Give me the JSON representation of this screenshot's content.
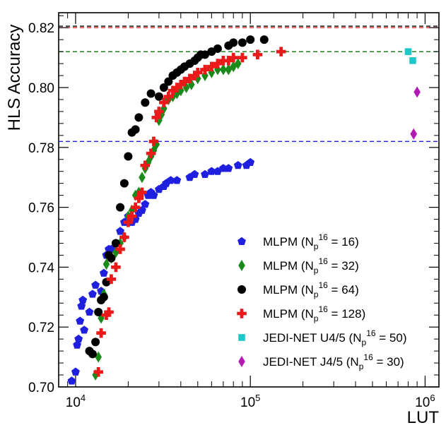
{
  "chart_data": {
    "type": "scatter",
    "x_scale": "log",
    "xlim": [
      8000,
      1200000
    ],
    "ylim": [
      0.7,
      0.825
    ],
    "xlabel": "LUT",
    "ylabel": "HLS Accuracy",
    "x_ticks": [
      {
        "value": 10000,
        "base": "10",
        "exp": "4"
      },
      {
        "value": 100000,
        "base": "10",
        "exp": "5"
      },
      {
        "value": 1000000,
        "base": "10",
        "exp": "6"
      }
    ],
    "y_ticks": [
      "0.70",
      "0.72",
      "0.74",
      "0.76",
      "0.78",
      "0.80",
      "0.82"
    ],
    "legend_position": "bottom-right",
    "reference_lines": [
      {
        "y": 0.8205,
        "color": "#000000"
      },
      {
        "y": 0.82,
        "color": "#e02020"
      },
      {
        "y": 0.812,
        "color": "#208020"
      },
      {
        "y": 0.782,
        "color": "#2020e0"
      }
    ],
    "series": [
      {
        "name": "MLPM",
        "np": "16",
        "marker": "pentagon",
        "color": "#1f1fe0",
        "x": [
          9500,
          10000,
          10200,
          10400,
          10600,
          10800,
          11000,
          11200,
          12000,
          12500,
          13000,
          14000,
          14500,
          15000,
          15500,
          16000,
          17000,
          18000,
          19000,
          20000,
          21000,
          22000,
          23000,
          24000,
          25000,
          26000,
          27000,
          28000,
          30000,
          32000,
          33000,
          35000,
          38000,
          45000,
          48000,
          55000,
          60000,
          65000,
          70000,
          75000,
          85000,
          95000,
          100000
        ],
        "y": [
          0.702,
          0.705,
          0.714,
          0.716,
          0.722,
          0.727,
          0.729,
          0.719,
          0.725,
          0.731,
          0.734,
          0.732,
          0.738,
          0.744,
          0.746,
          0.746,
          0.748,
          0.752,
          0.755,
          0.757,
          0.755,
          0.756,
          0.758,
          0.759,
          0.761,
          0.764,
          0.765,
          0.764,
          0.766,
          0.767,
          0.768,
          0.769,
          0.769,
          0.77,
          0.771,
          0.771,
          0.772,
          0.772,
          0.773,
          0.773,
          0.774,
          0.774,
          0.775
        ]
      },
      {
        "name": "MLPM",
        "np": "32",
        "marker": "diamond",
        "color": "#1a8a1a",
        "x": [
          13000,
          13500,
          14000,
          14500,
          15000,
          16000,
          17000,
          18000,
          19000,
          20000,
          21000,
          22000,
          23000,
          24000,
          25000,
          26000,
          27000,
          28000,
          29000,
          30000,
          31000,
          32000,
          34000,
          36000,
          38000,
          40000,
          43000,
          46000,
          50000,
          55000,
          60000,
          65000,
          70000,
          75000,
          80000,
          85000
        ],
        "y": [
          0.704,
          0.71,
          0.723,
          0.731,
          0.741,
          0.743,
          0.745,
          0.748,
          0.75,
          0.757,
          0.759,
          0.764,
          0.765,
          0.77,
          0.773,
          0.775,
          0.777,
          0.779,
          0.781,
          0.789,
          0.791,
          0.793,
          0.796,
          0.797,
          0.798,
          0.799,
          0.8,
          0.801,
          0.803,
          0.804,
          0.805,
          0.806,
          0.806,
          0.806,
          0.807,
          0.808
        ]
      },
      {
        "name": "MLPM",
        "np": "64",
        "marker": "circle",
        "color": "#000000",
        "x": [
          12000,
          12500,
          13000,
          13500,
          14000,
          14500,
          15000,
          15500,
          16000,
          17000,
          18000,
          19000,
          20000,
          21000,
          22000,
          23000,
          25000,
          27000,
          30000,
          32000,
          34000,
          36000,
          38000,
          40000,
          42000,
          45000,
          48000,
          50000,
          52000,
          55000,
          60000,
          65000,
          75000,
          80000,
          90000,
          100000,
          120000
        ],
        "y": [
          0.712,
          0.711,
          0.715,
          0.725,
          0.729,
          0.73,
          0.735,
          0.744,
          0.743,
          0.748,
          0.76,
          0.768,
          0.777,
          0.785,
          0.786,
          0.79,
          0.795,
          0.798,
          0.797,
          0.8,
          0.802,
          0.804,
          0.805,
          0.806,
          0.807,
          0.808,
          0.809,
          0.81,
          0.811,
          0.811,
          0.812,
          0.813,
          0.814,
          0.815,
          0.815,
          0.816,
          0.816
        ]
      },
      {
        "name": "MLPM",
        "np": "128",
        "marker": "cross",
        "color": "#e81a1a",
        "x": [
          13500,
          14000,
          15000,
          15500,
          16000,
          17000,
          18000,
          19000,
          20000,
          21000,
          22000,
          23000,
          24000,
          25000,
          27000,
          28000,
          29000,
          30000,
          32000,
          34000,
          36000,
          38000,
          40000,
          42000,
          45000,
          48000,
          50000,
          55000,
          60000,
          65000,
          70000,
          75000,
          80000,
          90000,
          110000,
          150000
        ],
        "y": [
          0.705,
          0.718,
          0.724,
          0.725,
          0.736,
          0.74,
          0.746,
          0.75,
          0.755,
          0.757,
          0.76,
          0.763,
          0.765,
          0.774,
          0.778,
          0.782,
          0.79,
          0.792,
          0.795,
          0.797,
          0.799,
          0.8,
          0.801,
          0.802,
          0.803,
          0.804,
          0.805,
          0.806,
          0.807,
          0.808,
          0.809,
          0.809,
          0.81,
          0.81,
          0.811,
          0.812
        ]
      },
      {
        "name": "JEDI-NET U4/5",
        "np": "50",
        "marker": "square",
        "color": "#1ec8c8",
        "x": [
          800000,
          850000
        ],
        "y": [
          0.812,
          0.809
        ]
      },
      {
        "name": "JEDI-NET J4/5",
        "np": "30",
        "marker": "diamond",
        "color": "#b21ab2",
        "x": [
          900000,
          860000
        ],
        "y": [
          0.7985,
          0.7845
        ]
      }
    ]
  }
}
